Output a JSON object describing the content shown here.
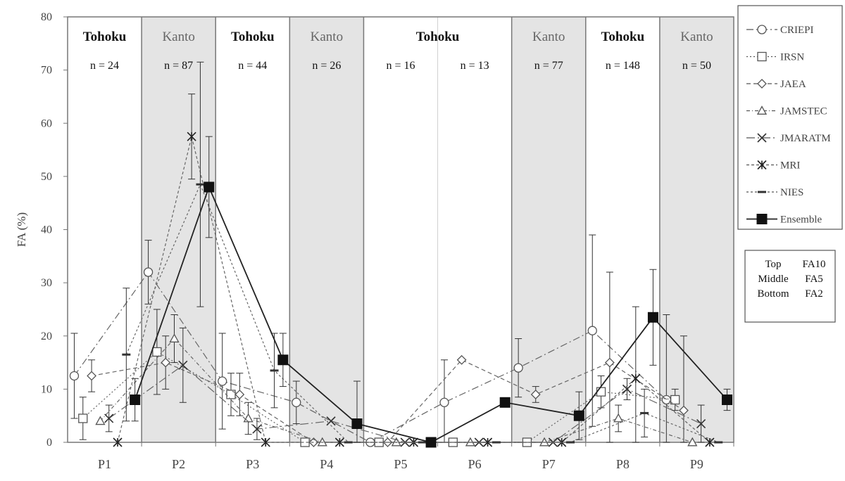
{
  "chart_data": {
    "type": "line",
    "ylabel": "FA (%)",
    "ylim": [
      0,
      80
    ],
    "yticks": [
      0,
      10,
      20,
      30,
      40,
      50,
      60,
      70,
      80
    ],
    "categories": [
      "P1",
      "P2",
      "P3",
      "P4",
      "P5",
      "P6",
      "P7",
      "P8",
      "P9"
    ],
    "grid": false,
    "legend_position": "right",
    "periods": [
      {
        "label": "P1",
        "region": "Tohoku",
        "n": "n = 24",
        "shaded": false
      },
      {
        "label": "P2",
        "region": "Kanto",
        "n": "n = 87",
        "shaded": true
      },
      {
        "label": "P3",
        "region": "Tohoku",
        "n": "n = 44",
        "shaded": false
      },
      {
        "label": "P4",
        "region": "Kanto",
        "n": "n = 26",
        "shaded": true
      },
      {
        "label": "P5",
        "region": "Tohoku",
        "n": "n = 16",
        "shaded": false
      },
      {
        "label": "P6",
        "region": "",
        "n": "n = 13",
        "shaded": false
      },
      {
        "label": "P7",
        "region": "Kanto",
        "n": "n = 77",
        "shaded": true
      },
      {
        "label": "P8",
        "region": "Tohoku",
        "n": "n = 148",
        "shaded": false
      },
      {
        "label": "P9",
        "region": "Kanto",
        "n": "n = 50",
        "shaded": true
      }
    ],
    "series": [
      {
        "name": "CRIEPI",
        "marker": "circle",
        "dash": "10,4,2,4",
        "index": 0,
        "values": [
          12.5,
          32,
          11.5,
          7.5,
          0,
          7.5,
          14,
          21,
          8
        ],
        "err": [
          8,
          6,
          9,
          4,
          0,
          8,
          5.5,
          18,
          16
        ]
      },
      {
        "name": "IRSN",
        "marker": "square",
        "dash": "2,3",
        "index": 1,
        "values": [
          4.5,
          17,
          9,
          0,
          0,
          0,
          0,
          9.5,
          8
        ],
        "err": [
          4,
          8,
          4,
          0,
          0,
          0,
          0,
          3,
          2
        ]
      },
      {
        "name": "JAEA",
        "marker": "diamond",
        "dash": "6,4",
        "index": 2,
        "values": [
          12.5,
          15,
          9,
          0,
          0,
          15.5,
          9,
          15,
          6
        ],
        "err": [
          3,
          5,
          4,
          0,
          0,
          0,
          1.5,
          17,
          14
        ]
      },
      {
        "name": "JAMSTEC",
        "marker": "triangle",
        "dash": "5,3,1,3",
        "index": 3,
        "values": [
          4,
          19.5,
          4.5,
          0,
          0,
          0,
          0,
          4.5,
          0
        ],
        "err": [
          0,
          4.5,
          3,
          0,
          0,
          0,
          0,
          2.5,
          0
        ]
      },
      {
        "name": "JMARATM",
        "marker": "x",
        "dash": "12,4,2,4",
        "index": 4,
        "values": [
          4.5,
          14.5,
          2.5,
          4,
          0,
          0,
          0,
          10,
          3.5
        ],
        "err": [
          2.5,
          7,
          2,
          0,
          0,
          0,
          0,
          2,
          3.5
        ]
      },
      {
        "name": "MRI",
        "marker": "star",
        "dash": "4,3",
        "index": 5,
        "values": [
          0,
          57.5,
          0,
          0,
          0,
          0,
          0,
          12,
          0
        ],
        "err": [
          0,
          8,
          0,
          0,
          0,
          0,
          0,
          13.5,
          0
        ]
      },
      {
        "name": "NIES",
        "marker": "dash",
        "dash": "3,3",
        "index": 6,
        "values": [
          16.5,
          48.5,
          13.5,
          0,
          0,
          0,
          0,
          5.5,
          0
        ],
        "err": [
          12.5,
          23,
          7,
          0,
          0,
          0,
          0,
          4.5,
          0
        ]
      },
      {
        "name": "Ensemble",
        "marker": "filled-square",
        "dash": "",
        "index": 7,
        "values": [
          8,
          48,
          15.5,
          3.5,
          0,
          7.5,
          5,
          23.5,
          8
        ],
        "err": [
          4,
          9.5,
          5,
          8,
          0,
          0,
          4.5,
          9,
          2
        ]
      }
    ],
    "note": {
      "rows": [
        {
          "position": "Top",
          "value": "FA10"
        },
        {
          "position": "Middle",
          "value": "FA5"
        },
        {
          "position": "Bottom",
          "value": "FA2"
        }
      ]
    }
  }
}
